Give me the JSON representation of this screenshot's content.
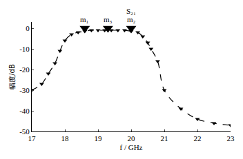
{
  "chart_data": {
    "type": "line",
    "x_label": "f / GHz",
    "y_label": "幅度/dB",
    "series": [
      {
        "name": "S₂₁",
        "color": "#000000",
        "line_style": "dashed",
        "marker": "triangle-down",
        "x": [
          17.0,
          17.3,
          17.5,
          17.7,
          17.85,
          18.0,
          18.2,
          18.4,
          18.6,
          18.8,
          19.0,
          19.2,
          19.4,
          19.6,
          19.8,
          20.0,
          20.2,
          20.35,
          20.5,
          20.6,
          20.8,
          21.0,
          21.5,
          22.0,
          22.5,
          23.0
        ],
        "values": [
          -30,
          -27,
          -22,
          -17,
          -11,
          -6,
          -3,
          -2,
          -1.5,
          -1,
          -1,
          -1,
          -1,
          -1,
          -1,
          -1.5,
          -2,
          -4,
          -7,
          -10,
          -16,
          -30,
          -39,
          -44,
          -46,
          -47
        ]
      }
    ],
    "markers": [
      {
        "label": "m₁",
        "x": 18.6,
        "y": 0
      },
      {
        "label": "m₃",
        "x": 19.3,
        "y": 0
      },
      {
        "label": "m₂",
        "x": 20.0,
        "y": 0
      }
    ],
    "annotations": [
      {
        "text": "S₂₁",
        "x": 20.0,
        "y": 0
      }
    ],
    "xlim": [
      17,
      23
    ],
    "xticks": [
      17,
      18,
      19,
      20,
      21,
      22,
      23
    ],
    "ylim": [
      -50,
      3
    ],
    "yticks": [
      0,
      -10,
      -20,
      -30,
      -40,
      -50
    ],
    "grid": false
  }
}
